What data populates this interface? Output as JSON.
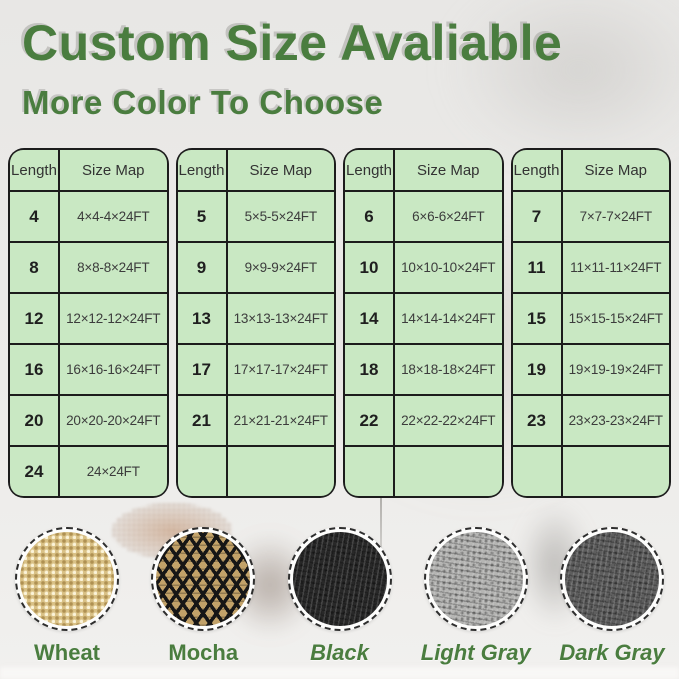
{
  "title": "Custom Size Avaliable",
  "subtitle": "More Color To Choose",
  "colors": {
    "accent_green": "#4a7d3f",
    "table_bg": "#c9e8c3",
    "table_border": "#1c1c1c"
  },
  "tables": [
    {
      "headers": [
        "Length",
        "Size Map"
      ],
      "rows": [
        {
          "length": "4",
          "size": "4×4-4×24FT"
        },
        {
          "length": "8",
          "size": "8×8-8×24FT"
        },
        {
          "length": "12",
          "size": "12×12-12×24FT"
        },
        {
          "length": "16",
          "size": "16×16-16×24FT"
        },
        {
          "length": "20",
          "size": "20×20-20×24FT"
        },
        {
          "length": "24",
          "size": "24×24FT"
        }
      ]
    },
    {
      "headers": [
        "Length",
        "Size Map"
      ],
      "rows": [
        {
          "length": "5",
          "size": "5×5-5×24FT"
        },
        {
          "length": "9",
          "size": "9×9-9×24FT"
        },
        {
          "length": "13",
          "size": "13×13-13×24FT"
        },
        {
          "length": "17",
          "size": "17×17-17×24FT"
        },
        {
          "length": "21",
          "size": "21×21-21×24FT"
        },
        {
          "length": "",
          "size": ""
        }
      ]
    },
    {
      "headers": [
        "Length",
        "Size Map"
      ],
      "rows": [
        {
          "length": "6",
          "size": "6×6-6×24FT"
        },
        {
          "length": "10",
          "size": "10×10-10×24FT"
        },
        {
          "length": "14",
          "size": "14×14-14×24FT"
        },
        {
          "length": "18",
          "size": "18×18-18×24FT"
        },
        {
          "length": "22",
          "size": "22×22-22×24FT"
        },
        {
          "length": "",
          "size": ""
        }
      ]
    },
    {
      "headers": [
        "Length",
        "Size Map"
      ],
      "rows": [
        {
          "length": "7",
          "size": "7×7-7×24FT"
        },
        {
          "length": "11",
          "size": "11×11-11×24FT"
        },
        {
          "length": "15",
          "size": "15×15-15×24FT"
        },
        {
          "length": "19",
          "size": "19×19-19×24FT"
        },
        {
          "length": "23",
          "size": "23×23-23×24FT"
        },
        {
          "length": "",
          "size": ""
        }
      ]
    }
  ],
  "swatches": [
    {
      "label": "Wheat",
      "base": "#d9c186",
      "accent": "#c3a55e"
    },
    {
      "label": "Mocha",
      "base": "#c2a269",
      "accent": "#161616"
    },
    {
      "label": "Black",
      "base": "#282828",
      "accent": "#111111"
    },
    {
      "label": "Light Gray",
      "base": "#b5b5b3",
      "accent": "#8c8c8a"
    },
    {
      "label": "Dark Gray",
      "base": "#5e5e5e",
      "accent": "#474747"
    }
  ]
}
